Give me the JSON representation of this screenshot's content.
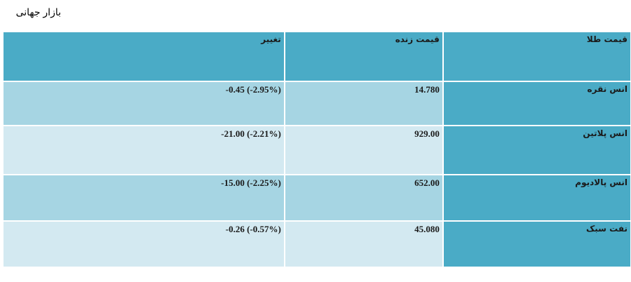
{
  "page": {
    "title": "بازار جهانی"
  },
  "table": {
    "headers": {
      "name": "قیمت طلا",
      "price": "قیمت زنده",
      "change": "تغییر"
    },
    "rows": [
      {
        "name": "انس نقره",
        "price": "14.780",
        "change": "-0.45 (-2.95%)"
      },
      {
        "name": "انس پلاتین",
        "price": "929.00",
        "change": "-21.00 (-2.21%)"
      },
      {
        "name": "انس پالادیوم",
        "price": "652.00",
        "change": "-15.00 (-2.25%)"
      },
      {
        "name": "نفت سبک",
        "price": "45.080",
        "change": "-0.26 (-0.57%)"
      }
    ]
  },
  "colors": {
    "header_bg": "#4aabc6",
    "row_dark": "#a6d5e3",
    "row_light": "#d3e9f1"
  }
}
